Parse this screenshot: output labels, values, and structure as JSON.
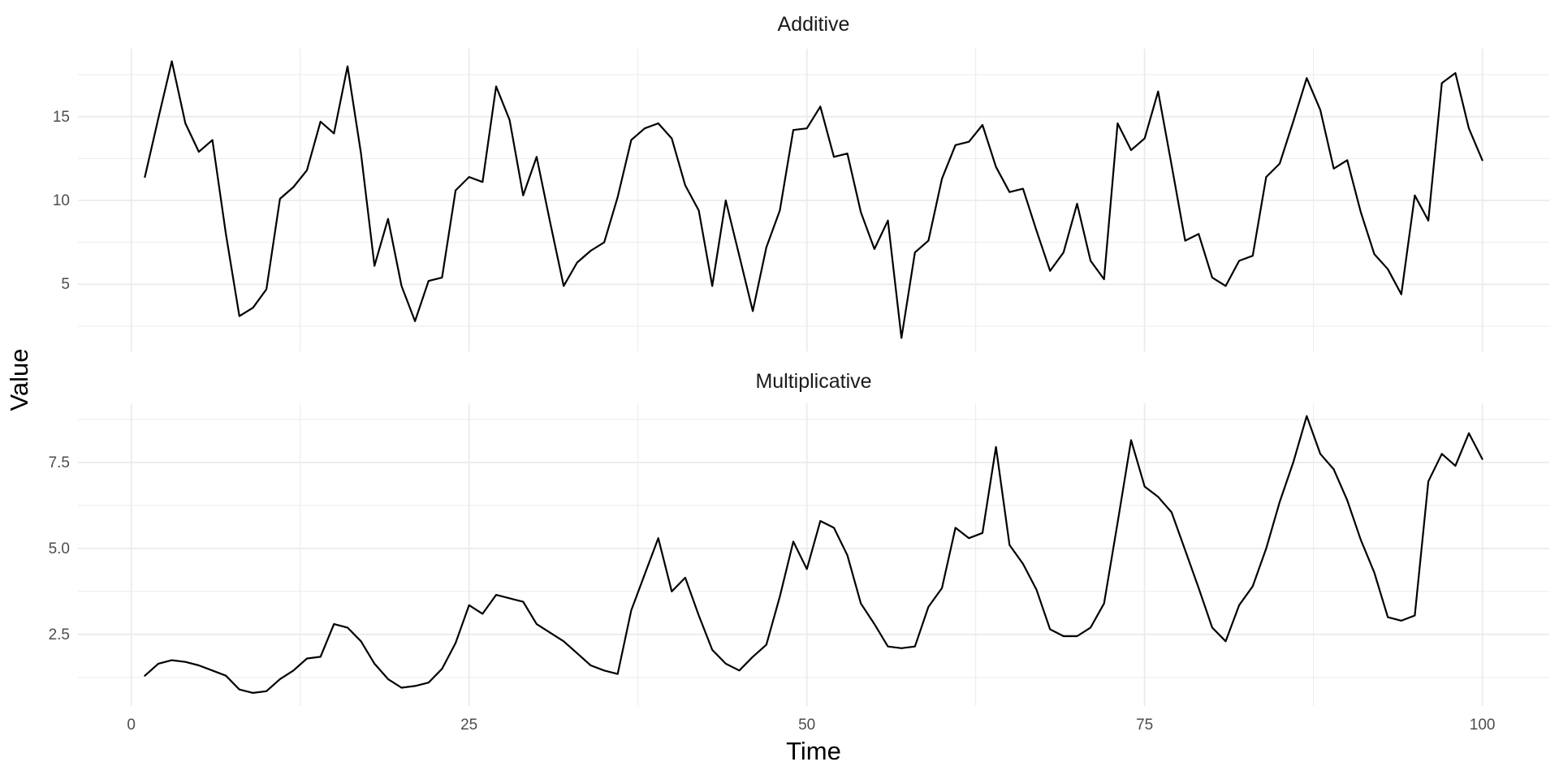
{
  "figure": {
    "background_color": "#ffffff",
    "line_color": "#000000",
    "grid_color": "#ebebeb",
    "tick_label_color": "#4d4d4d",
    "facet_title_color": "#1a1a1a",
    "axis_title_color": "#000000"
  },
  "y_axis_title": "Value",
  "x_axis_title": "Time",
  "x_axis": {
    "xlim": [
      -3.95,
      104.95
    ],
    "major_ticks": [
      0,
      25,
      50,
      75,
      100
    ],
    "tick_labels": [
      "0",
      "25",
      "50",
      "75",
      "100"
    ],
    "minor_ticks": [
      12.5,
      37.5,
      62.5,
      87.5
    ]
  },
  "chart_data": [
    {
      "type": "line",
      "title": "Additive",
      "x_start": 1,
      "ylim": [
        1.0,
        19.05
      ],
      "y_major_ticks": [
        5,
        10,
        15
      ],
      "y_tick_labels": [
        "5",
        "10",
        "15"
      ],
      "y_minor_ticks": [
        2.5,
        7.5,
        12.5,
        17.5
      ],
      "values": [
        11.4,
        14.9,
        18.3,
        14.6,
        12.9,
        13.6,
        8.0,
        3.1,
        3.6,
        4.7,
        10.1,
        10.8,
        11.8,
        14.7,
        14.0,
        18.0,
        12.8,
        6.1,
        8.9,
        4.9,
        2.8,
        5.2,
        5.4,
        10.6,
        11.4,
        11.1,
        16.8,
        14.8,
        10.3,
        12.6,
        8.7,
        4.9,
        6.3,
        7.0,
        7.5,
        10.2,
        13.6,
        14.3,
        14.6,
        13.7,
        10.9,
        9.4,
        4.9,
        10.0,
        6.7,
        3.4,
        7.2,
        9.4,
        14.2,
        14.3,
        15.6,
        12.6,
        12.8,
        9.3,
        7.1,
        8.8,
        1.8,
        6.9,
        7.6,
        11.3,
        13.3,
        13.5,
        14.5,
        12.0,
        10.5,
        10.7,
        8.2,
        5.8,
        6.9,
        9.8,
        6.4,
        5.3,
        14.6,
        13.0,
        13.7,
        16.5,
        12.1,
        7.6,
        8.0,
        5.4,
        4.9,
        6.4,
        6.7,
        11.4,
        12.2,
        14.7,
        17.3,
        15.4,
        11.9,
        12.4,
        9.3,
        6.8,
        5.9,
        4.4,
        10.3,
        8.8,
        17.0,
        17.6,
        14.3,
        12.4
      ]
    },
    {
      "type": "line",
      "title": "Multiplicative",
      "x_start": 1,
      "ylim": [
        0.42,
        9.22
      ],
      "y_major_ticks": [
        2.5,
        5.0,
        7.5
      ],
      "y_tick_labels": [
        "2.5",
        "5.0",
        "7.5"
      ],
      "y_minor_ticks": [
        1.25,
        3.75,
        6.25,
        8.75
      ],
      "values": [
        1.3,
        1.65,
        1.75,
        1.7,
        1.6,
        1.45,
        1.3,
        0.9,
        0.8,
        0.85,
        1.2,
        1.45,
        1.8,
        1.85,
        2.8,
        2.7,
        2.3,
        1.65,
        1.2,
        0.95,
        1.0,
        1.1,
        1.5,
        2.25,
        3.35,
        3.1,
        3.65,
        3.55,
        3.45,
        2.8,
        2.55,
        2.3,
        1.95,
        1.6,
        1.45,
        1.35,
        3.2,
        4.25,
        5.3,
        3.75,
        4.15,
        3.05,
        2.05,
        1.65,
        1.45,
        1.85,
        2.2,
        3.6,
        5.2,
        4.4,
        5.8,
        5.6,
        4.8,
        3.4,
        2.8,
        2.15,
        2.1,
        2.15,
        3.3,
        3.85,
        5.6,
        5.3,
        5.45,
        7.95,
        5.1,
        4.55,
        3.8,
        2.65,
        2.45,
        2.45,
        2.7,
        3.4,
        5.75,
        8.15,
        6.8,
        6.5,
        6.05,
        4.95,
        3.85,
        2.7,
        2.3,
        3.35,
        3.9,
        5.0,
        6.35,
        7.5,
        8.85,
        7.75,
        7.3,
        6.4,
        5.25,
        4.3,
        3.0,
        2.9,
        3.05,
        6.95,
        7.75,
        7.4,
        8.35,
        7.6
      ]
    }
  ]
}
